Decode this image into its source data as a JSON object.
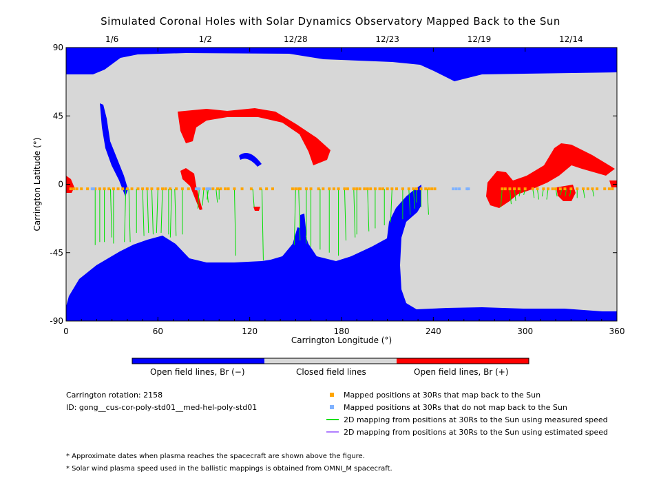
{
  "chart_data": {
    "type": "map",
    "title": "Simulated Coronal Holes with Solar Dynamics Observatory Mapped Back to the Sun",
    "xlabel": "Carrington Longitude (°)",
    "ylabel": "Carrington Latitude (°)",
    "xlim": [
      0,
      360
    ],
    "ylim": [
      -90,
      90
    ],
    "xticks": [
      "0",
      "60",
      "120",
      "180",
      "240",
      "300",
      "360"
    ],
    "yticks": [
      "90",
      "45",
      "0",
      "-45",
      "-90"
    ],
    "top_dates": [
      {
        "label": "1/6",
        "lon": 30
      },
      {
        "label": "1/2",
        "lon": 91
      },
      {
        "label": "12/28",
        "lon": 150
      },
      {
        "label": "12/23",
        "lon": 210
      },
      {
        "label": "12/19",
        "lon": 270
      },
      {
        "label": "12/14",
        "lon": 330
      }
    ],
    "colors": {
      "open_negative": "#0000ff",
      "closed": "#d7d7d7",
      "open_positive": "#ff0000",
      "mapped": "#ffa500",
      "not_mapped": "#7fb2ff",
      "measured_speed": "#00e000",
      "estimated_speed": "#b07fff"
    },
    "colorbar": [
      "Open field lines, Br (−)",
      "Closed field lines",
      "Open field lines, Br (+)"
    ],
    "mapped_lat": -3,
    "mapped_lons": [
      3,
      5,
      7,
      10,
      14,
      19,
      22,
      25,
      28,
      31,
      34,
      37,
      40,
      43,
      47,
      50,
      53,
      56,
      60,
      63,
      65,
      68,
      72,
      76,
      80,
      90,
      96,
      99,
      101,
      104,
      106,
      110,
      115,
      121,
      127,
      131,
      135,
      148,
      150,
      152,
      153,
      157,
      160,
      165,
      168,
      172,
      175,
      178,
      182,
      184,
      188,
      190,
      192,
      195,
      197,
      199,
      202,
      205,
      207,
      210,
      213,
      216,
      220,
      224,
      227,
      229,
      232,
      235,
      237,
      239,
      241,
      285,
      287,
      290,
      293,
      296,
      300,
      305,
      308,
      312,
      315,
      318,
      320,
      323,
      326,
      330,
      334,
      338,
      341,
      344,
      347,
      352,
      355,
      357
    ],
    "unmapped_lons": [
      17,
      18,
      85,
      86,
      87,
      92,
      93,
      94,
      253,
      255,
      257,
      262,
      263
    ],
    "mapping_lines": [
      [
        19,
        -40
      ],
      [
        22,
        -38
      ],
      [
        25,
        -38
      ],
      [
        29,
        -35
      ],
      [
        31,
        -39
      ],
      [
        39,
        -38
      ],
      [
        41,
        -38
      ],
      [
        46,
        -32
      ],
      [
        50,
        -34
      ],
      [
        53,
        -32
      ],
      [
        56,
        -33
      ],
      [
        60,
        -32
      ],
      [
        63,
        -32
      ],
      [
        67,
        -33
      ],
      [
        69,
        -35
      ],
      [
        71,
        -34
      ],
      [
        76,
        -33
      ],
      [
        87,
        -16
      ],
      [
        90,
        -14
      ],
      [
        92,
        -12
      ],
      [
        93,
        -10
      ],
      [
        98,
        -12
      ],
      [
        100,
        -10
      ],
      [
        110,
        -47
      ],
      [
        122,
        -15
      ],
      [
        128,
        -50
      ],
      [
        150,
        -40
      ],
      [
        152,
        -37
      ],
      [
        157,
        -39
      ],
      [
        160,
        -41
      ],
      [
        166,
        -43
      ],
      [
        172,
        -45
      ],
      [
        178,
        -47
      ],
      [
        182,
        -37
      ],
      [
        188,
        -35
      ],
      [
        190,
        -33
      ],
      [
        197,
        -31
      ],
      [
        202,
        -29
      ],
      [
        208,
        -27
      ],
      [
        213,
        -25
      ],
      [
        220,
        -23
      ],
      [
        224,
        -20
      ],
      [
        227,
        -16
      ],
      [
        229,
        -12
      ],
      [
        232,
        -15
      ],
      [
        236,
        -20
      ],
      [
        285,
        -15
      ],
      [
        290,
        -13
      ],
      [
        293,
        -11
      ],
      [
        297,
        -8
      ],
      [
        300,
        -7
      ],
      [
        305,
        -9
      ],
      [
        308,
        -10
      ],
      [
        312,
        -8
      ],
      [
        315,
        -10
      ],
      [
        320,
        -8
      ],
      [
        324,
        -7
      ],
      [
        327,
        -8
      ],
      [
        330,
        -8
      ],
      [
        334,
        -9
      ],
      [
        338,
        -9
      ],
      [
        344,
        -8
      ]
    ]
  },
  "info": {
    "rotation": "Carrington rotation: 2158",
    "id": "ID: gong__cus-cor-poly-std01__med-hel-poly-std01"
  },
  "legend": [
    {
      "text": "Mapped positions at 30Rs that map back to the Sun",
      "color": "#ffa500",
      "kind": "square"
    },
    {
      "text": "Mapped positions at 30Rs that do not map back to the Sun",
      "color": "#7fb2ff",
      "kind": "square"
    },
    {
      "text": "2D mapping from positions at 30Rs to the Sun using measured speed",
      "color": "#00e000",
      "kind": "line"
    },
    {
      "text": "2D mapping from positions at 30Rs to the Sun using estimated speed",
      "color": "#b07fff",
      "kind": "line"
    }
  ],
  "notes": [
    "* Approximate dates when plasma reaches the spacecraft are shown above the figure.",
    "* Solar wind plasma speed used in the ballistic mappings is obtained from OMNI_M spacecraft."
  ]
}
